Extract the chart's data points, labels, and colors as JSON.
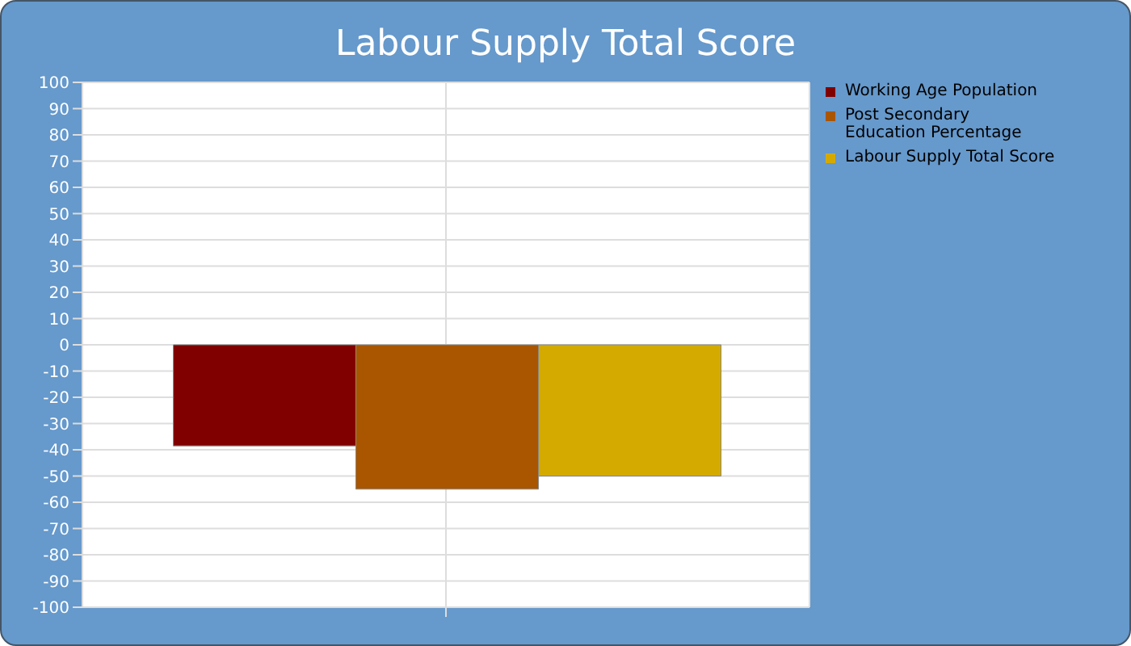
{
  "chart_data": {
    "type": "bar",
    "title": "Labour Supply Total Score",
    "categories": [
      null
    ],
    "series": [
      {
        "name": "Working Age Population",
        "color": "#800000",
        "values": [
          -38.5
        ]
      },
      {
        "name": "Post Secondary Education Percentage",
        "color": "#aa5500",
        "values": [
          -55
        ]
      },
      {
        "name": "Labour Supply Total Score",
        "color": "#d4aa00",
        "values": [
          -50
        ]
      }
    ],
    "ylim": [
      -100,
      100
    ],
    "yticks": [
      -100,
      -90,
      -80,
      -70,
      -60,
      -50,
      -40,
      -30,
      -20,
      -10,
      0,
      10,
      20,
      30,
      40,
      50,
      60,
      70,
      80,
      90,
      100
    ],
    "grid": true,
    "legend": "top right"
  }
}
